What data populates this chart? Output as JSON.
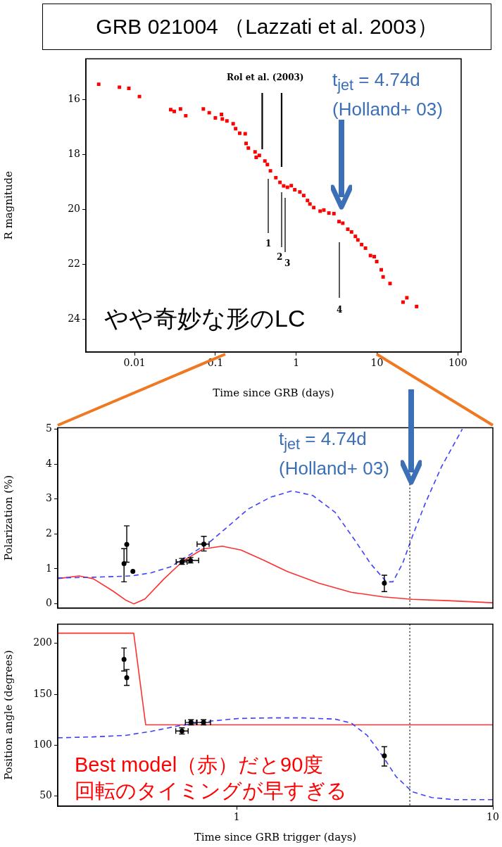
{
  "chart_data": [
    {
      "type": "scatter",
      "title": "GRB 021004 （Lazzati et al. 2003）",
      "xlabel": "Time since GRB (days)",
      "ylabel": "R magnitude",
      "log": "x",
      "marker": "square",
      "color": "#ff0000",
      "x": [
        0.0036,
        0.0065,
        0.0085,
        0.0115,
        0.028,
        0.031,
        0.037,
        0.043,
        0.071,
        0.084,
        0.1,
        0.119,
        0.122,
        0.139,
        0.166,
        0.178,
        0.2,
        0.234,
        0.24,
        0.256,
        0.31,
        0.32,
        0.35,
        0.41,
        0.44,
        0.48,
        0.56,
        0.63,
        0.7,
        0.78,
        0.87,
        0.96,
        1.11,
        1.24,
        1.38,
        1.48,
        1.65,
        1.98,
        2.2,
        2.54,
        2.93,
        3.39,
        3.77,
        4.35,
        4.84,
        5.4,
        5.8,
        6.45,
        7.2,
        8.3,
        9.25,
        9.93,
        11.3,
        11.9,
        14.5,
        21,
        23.4,
        30.9
      ],
      "values": [
        15.43,
        15.54,
        15.58,
        15.88,
        16.36,
        16.42,
        16.33,
        16.58,
        16.33,
        16.47,
        16.66,
        16.53,
        16.7,
        16.77,
        16.87,
        17.05,
        17.22,
        17.24,
        17.59,
        17.76,
        17.9,
        18.1,
        18.03,
        18.23,
        18.36,
        18.59,
        18.84,
        19.01,
        19.14,
        19.19,
        19.13,
        19.28,
        19.36,
        19.49,
        19.67,
        19.8,
        19.93,
        20.06,
        20.02,
        20.13,
        20.15,
        20.44,
        20.5,
        20.72,
        20.82,
        20.98,
        21.11,
        21.28,
        21.41,
        21.68,
        21.72,
        21.9,
        22.2,
        22.46,
        22.7,
        23.38,
        23.22,
        23.54
      ],
      "xlim": [
        0.0025,
        110
      ],
      "xticks": [
        0.01,
        0.1,
        1,
        10,
        100
      ],
      "ylim": [
        25.2,
        14.5
      ],
      "yticks": [
        16,
        18,
        20,
        22,
        24
      ],
      "ref_lines": [
        {
          "axis": "x",
          "value": 0.38,
          "color": "#000000"
        },
        {
          "axis": "x",
          "value": 0.66,
          "color": "#000000"
        }
      ],
      "annotations": [
        "Rol et al. (2003)",
        "1",
        "2",
        "3",
        "4",
        "t$_{jet}$ = 4.74d\n(Holland+ 03)",
        "やや奇妙な形のLC"
      ]
    },
    {
      "type": "line",
      "ylabel": "Polarization (%)",
      "log": "x",
      "xlim": [
        0.2,
        10
      ],
      "ylim": [
        -0.12,
        5.04
      ],
      "yticks": [
        0,
        1,
        2,
        3,
        4,
        5
      ],
      "tick_labels": "y",
      "series": [
        {
          "type": "line",
          "color": "#ff3030",
          "line_style": "solid",
          "marker": "none",
          "x": [
            0.2,
            0.242,
            0.275,
            0.328,
            0.368,
            0.396,
            0.438,
            0.521,
            0.62,
            0.738,
            0.877,
            1.04,
            1.28,
            1.57,
            2.09,
            2.8,
            3.73,
            4.85,
            6.67,
            10
          ],
          "values": [
            0.72,
            0.8,
            0.72,
            0.37,
            0.11,
            0.0,
            0.14,
            0.72,
            1.24,
            1.57,
            1.65,
            1.54,
            1.24,
            0.93,
            0.59,
            0.33,
            0.2,
            0.13,
            0.09,
            0.03
          ]
        },
        {
          "type": "line",
          "color": "#4040ff",
          "line_style": "dashed",
          "marker": "none",
          "x": [
            0.2,
            0.275,
            0.39,
            0.464,
            0.552,
            0.657,
            0.782,
            0.93,
            1.107,
            1.355,
            1.64,
            1.98,
            2.42,
            2.88,
            3.33,
            3.84,
            4.07,
            4.44,
            4.85,
            5.45,
            6.3,
            7.6
          ],
          "values": [
            0.74,
            0.76,
            0.8,
            0.89,
            1.06,
            1.41,
            1.76,
            2.23,
            2.71,
            3.05,
            3.23,
            3.1,
            2.62,
            1.84,
            1.15,
            0.63,
            0.63,
            1.15,
            1.93,
            2.88,
            3.92,
            5.0
          ]
        },
        {
          "type": "scatter",
          "color": "#000000",
          "marker": "circle",
          "x": [
            0.363,
            0.372,
            0.393,
            0.611,
            0.66,
            0.744,
            3.77
          ],
          "values": [
            1.15,
            1.7,
            0.93,
            1.2,
            1.24,
            1.71,
            0.59
          ],
          "errors": [
            [
              0.63,
              1.58
            ],
            [
              1.19,
              2.23
            ],
            null,
            [
              1.13,
              1.3
            ],
            [
              1.17,
              1.33
            ],
            [
              1.51,
              1.93
            ],
            [
              0.35,
              0.82
            ]
          ],
          "xerrors": [
            null,
            null,
            null,
            [
              0.58,
              0.64
            ],
            [
              0.62,
              0.71
            ],
            [
              0.7,
              0.78
            ],
            null
          ]
        }
      ],
      "ref_lines": [
        {
          "axis": "x",
          "value": 4.74,
          "line_style": "dotted",
          "color": "#000000"
        }
      ],
      "annotations": [
        "t$_{jet}$ = 4.74d\n(Holland+ 03)"
      ]
    },
    {
      "type": "line",
      "xlabel": "Time since GRB trigger (days)",
      "ylabel": "Position angle (degrees)",
      "log": "x",
      "xlim": [
        0.2,
        10
      ],
      "xticks": [
        1,
        10
      ],
      "ylim": [
        40,
        219
      ],
      "yticks": [
        50,
        100,
        150,
        200
      ],
      "series": [
        {
          "type": "line",
          "color": "#ff3030",
          "line_style": "solid",
          "marker": "none",
          "x": [
            0.2,
            0.396,
            0.441,
            10
          ],
          "values": [
            210,
            210,
            120,
            120
          ]
        },
        {
          "type": "line",
          "color": "#4040ff",
          "line_style": "dashed",
          "marker": "none",
          "x": [
            0.2,
            0.275,
            0.368,
            0.464,
            0.585,
            0.76,
            1.015,
            1.355,
            1.81,
            2.42,
            2.8,
            3.23,
            3.73,
            4.19,
            4.85,
            5.77,
            7.05,
            10
          ],
          "values": [
            107.2,
            108.1,
            109.6,
            113.6,
            118.7,
            123.2,
            126.2,
            126.8,
            126.8,
            125.6,
            121.7,
            109.6,
            88.6,
            69,
            54.1,
            48.5,
            46.4,
            46.4
          ]
        },
        {
          "type": "scatter",
          "color": "#000000",
          "marker": "circle",
          "x": [
            0.363,
            0.372,
            0.611,
            0.663,
            0.742,
            3.77
          ],
          "values": [
            184.3,
            166.3,
            113.9,
            122.3,
            122.3,
            89.5
          ],
          "errors": [
            [
              172.9,
              195.5
            ],
            [
              158.7,
              174.4
            ],
            [
              111,
              117
            ],
            [
              120,
              125
            ],
            [
              120,
              125
            ],
            [
              79.5,
              98.5
            ]
          ],
          "xerrors": [
            null,
            null,
            [
              0.578,
              0.646
            ],
            [
              0.63,
              0.696
            ],
            [
              0.7,
              0.79
            ],
            null
          ]
        }
      ],
      "ref_lines": [
        {
          "axis": "x",
          "value": 4.74,
          "line_style": "dotted",
          "color": "#000000"
        }
      ],
      "annotations": [
        "Best model（赤）だと90度回転のタイミングが早すぎる"
      ]
    }
  ]
}
